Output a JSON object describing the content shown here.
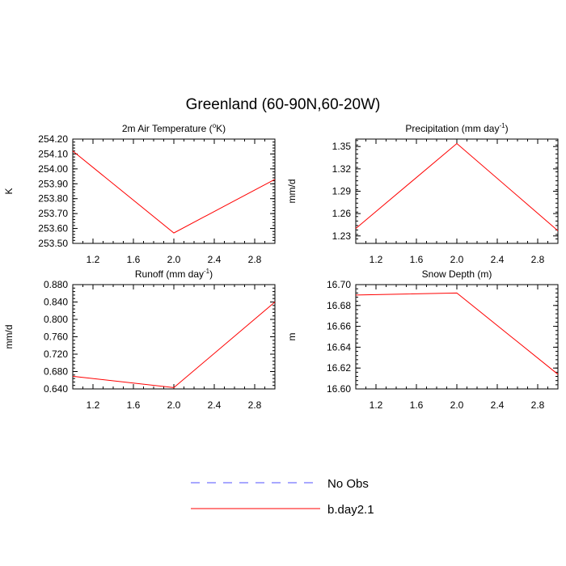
{
  "figure": {
    "title": "Greenland (60-90N,60-20W)"
  },
  "chart_data": [
    {
      "type": "line",
      "title": "2m Air Temperature (°K)",
      "title_parts": [
        "2m Air Temperature (",
        "o",
        "K)"
      ],
      "xlabel": "",
      "ylabel": "K",
      "xlim": [
        1.0,
        3.0
      ],
      "ylim": [
        253.5,
        254.2
      ],
      "xticks": [
        "1.2",
        "1.6",
        "2.0",
        "2.4",
        "2.8"
      ],
      "yticks": [
        "253.50",
        "253.60",
        "253.70",
        "253.80",
        "253.90",
        "254.00",
        "254.10",
        "254.20"
      ],
      "series": [
        {
          "name": "b.day2.1",
          "x": [
            1.0,
            2.0,
            3.0
          ],
          "y": [
            254.12,
            253.57,
            253.93
          ]
        }
      ]
    },
    {
      "type": "line",
      "title": "Precipitation (mm day-1)",
      "title_parts": [
        "Precipitation (mm day",
        "-1",
        ")"
      ],
      "xlabel": "",
      "ylabel": "mm/d",
      "xlim": [
        1.0,
        3.0
      ],
      "ylim": [
        1.22,
        1.36
      ],
      "xticks": [
        "1.2",
        "1.6",
        "2.0",
        "2.4",
        "2.8"
      ],
      "yticks": [
        "1.23",
        "1.26",
        "1.29",
        "1.32",
        "1.35"
      ],
      "series": [
        {
          "name": "b.day2.1",
          "x": [
            1.0,
            2.0,
            3.0
          ],
          "y": [
            1.24,
            1.354,
            1.237
          ]
        }
      ]
    },
    {
      "type": "line",
      "title": "Runoff (mm day-1)",
      "title_parts": [
        "Runoff (mm day",
        "-1",
        ")"
      ],
      "xlabel": "",
      "ylabel": "mm/d",
      "xlim": [
        1.0,
        3.0
      ],
      "ylim": [
        0.64,
        0.88
      ],
      "xticks": [
        "1.2",
        "1.6",
        "2.0",
        "2.4",
        "2.8"
      ],
      "yticks": [
        "0.640",
        "0.680",
        "0.720",
        "0.760",
        "0.800",
        "0.840",
        "0.880"
      ],
      "series": [
        {
          "name": "b.day2.1",
          "x": [
            1.0,
            2.0,
            3.0
          ],
          "y": [
            0.669,
            0.643,
            0.84
          ]
        }
      ]
    },
    {
      "type": "line",
      "title": "Snow Depth (m)",
      "title_parts": [
        "Snow Depth (m)",
        "",
        ""
      ],
      "xlabel": "",
      "ylabel": "m",
      "xlim": [
        1.0,
        3.0
      ],
      "ylim": [
        16.6,
        16.7
      ],
      "xticks": [
        "1.2",
        "1.6",
        "2.0",
        "2.4",
        "2.8"
      ],
      "yticks": [
        "16.60",
        "16.62",
        "16.64",
        "16.66",
        "16.68",
        "16.70"
      ],
      "series": [
        {
          "name": "b.day2.1",
          "x": [
            1.0,
            2.0,
            3.0
          ],
          "y": [
            16.69,
            16.692,
            16.614
          ]
        }
      ]
    }
  ],
  "legend": {
    "entries": [
      {
        "label": "No Obs",
        "color": "#5050ff",
        "style": "dashed"
      },
      {
        "label": "b.day2.1",
        "color": "#ff0000",
        "style": "solid"
      }
    ]
  },
  "colors": {
    "series": "#ff0000",
    "obs": "#5050ff",
    "axis": "#000000"
  }
}
